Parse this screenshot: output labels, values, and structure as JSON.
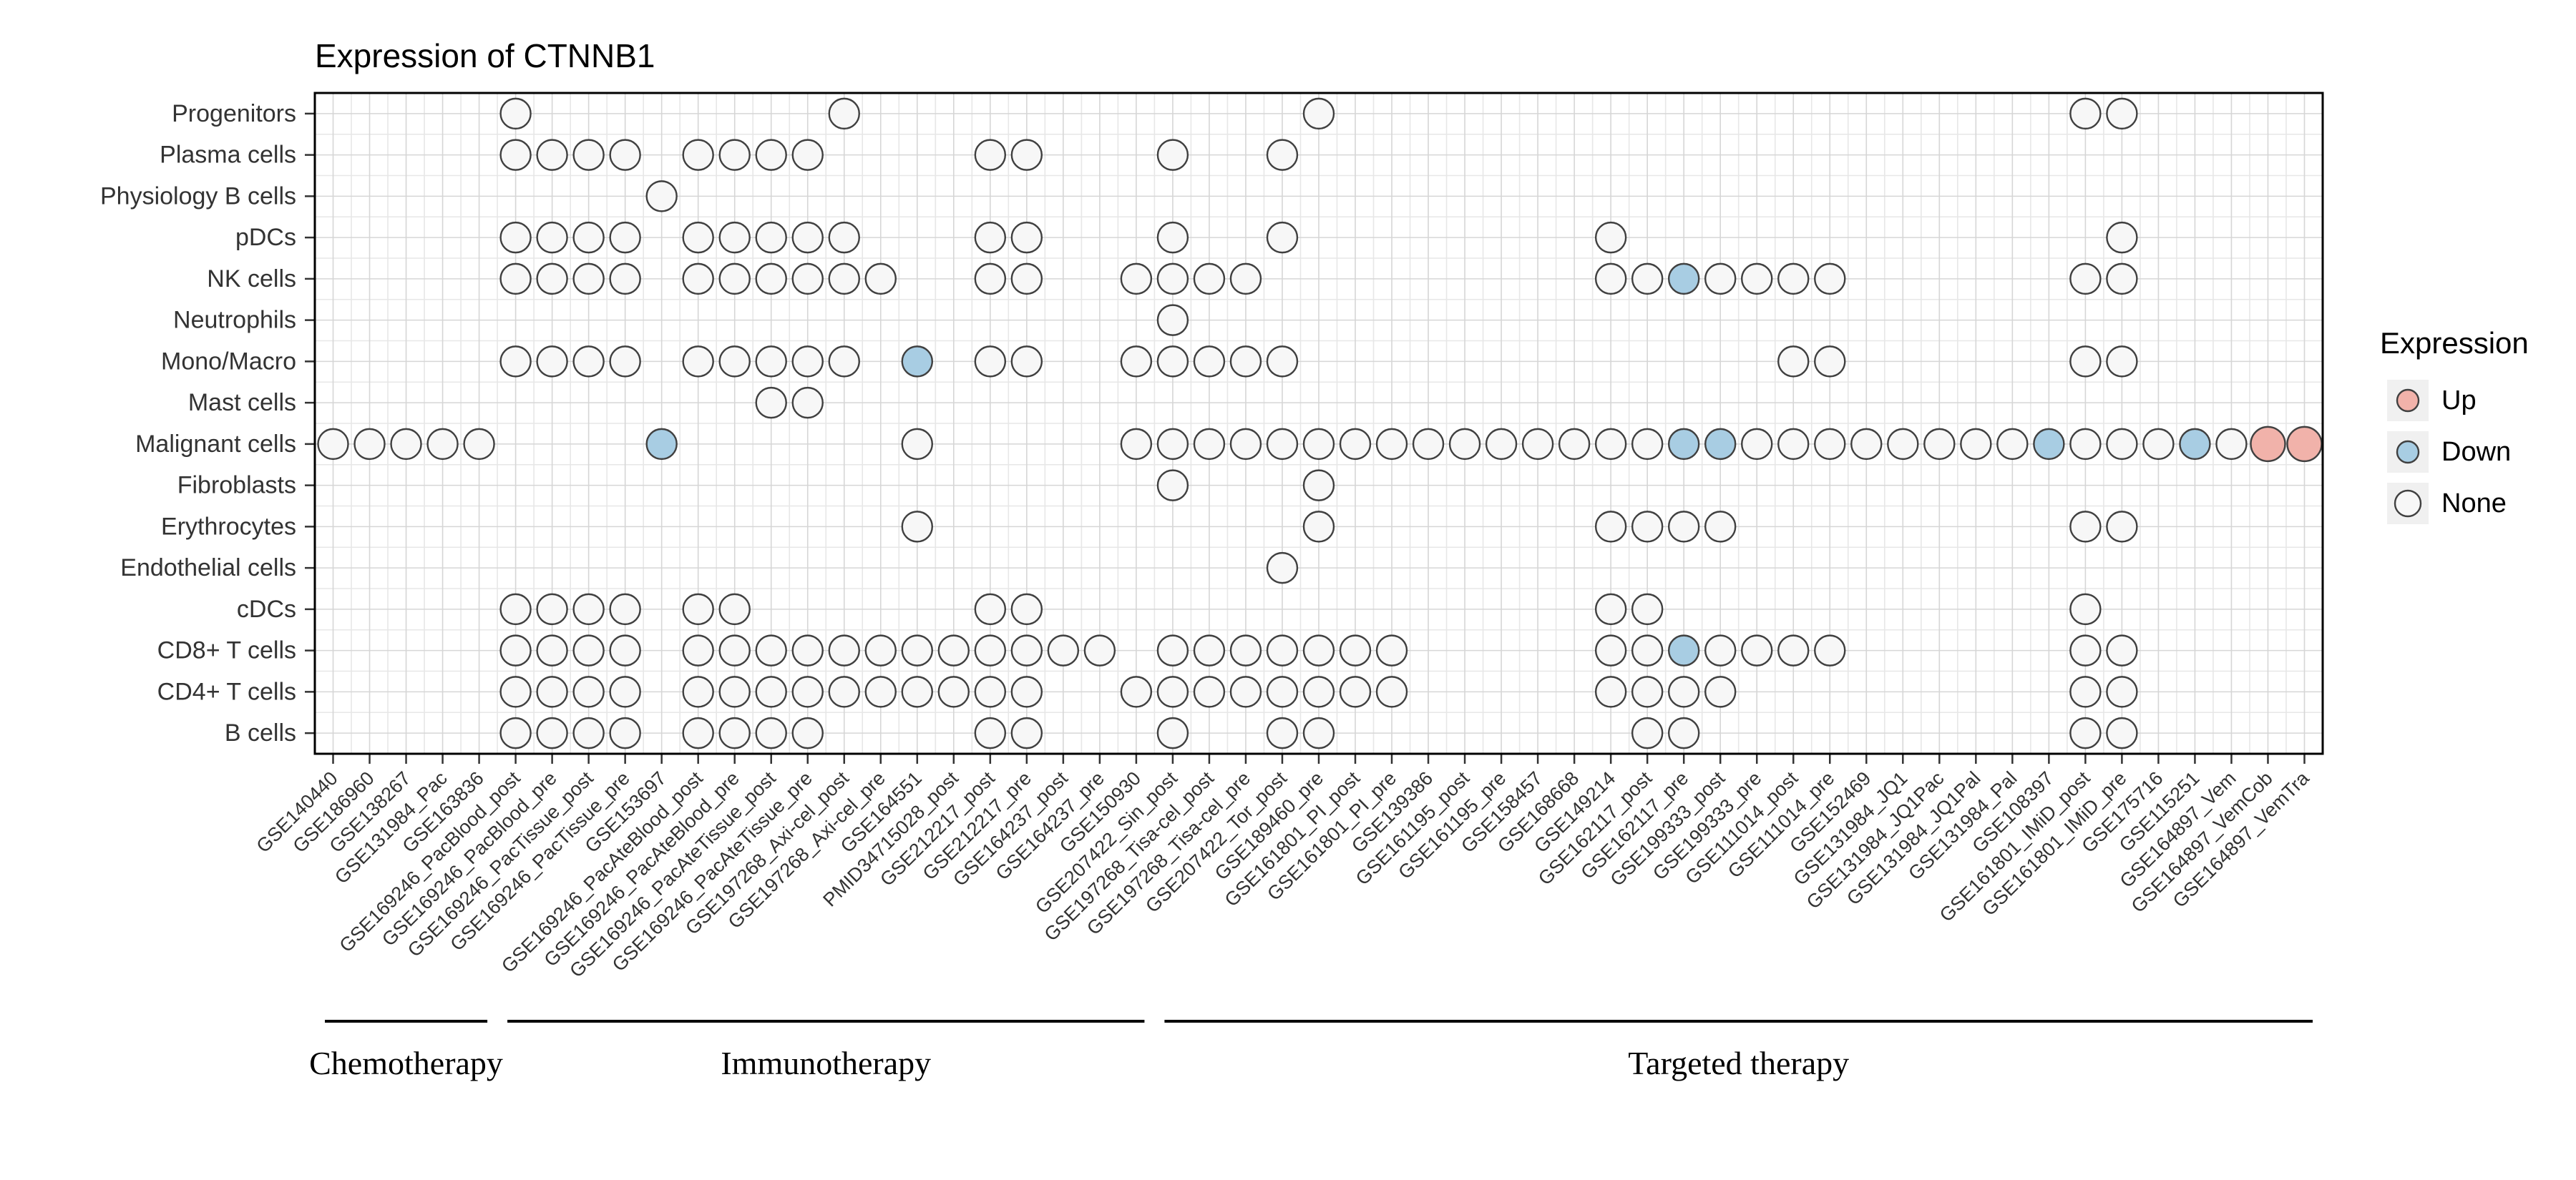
{
  "colors": {
    "up": "#F1B2AA",
    "down": "#A8CDE3",
    "none": "#F7F7F7",
    "dot_stroke": "#404040",
    "grid_major": "#d6d6d6",
    "grid_minor": "#e7e7e7",
    "panel_border": "#000000",
    "title_text": "#000000",
    "axis_text": "#333333",
    "legend_key_bg": "#f0f0f0"
  },
  "chart_data": {
    "type": "heatmap",
    "title": "Expression of CTNNB1",
    "xlabel": "",
    "ylabel": "",
    "legend": {
      "title": "Expression",
      "position": "right",
      "items": [
        {
          "label": "Up",
          "state": "up",
          "color": "#F1B2AA"
        },
        {
          "label": "Down",
          "state": "down",
          "color": "#A8CDE3"
        },
        {
          "label": "None",
          "state": "none",
          "color": "#F7F7F7"
        }
      ]
    },
    "rows": [
      "Progenitors",
      "Plasma cells",
      "Physiology B cells",
      "pDCs",
      "NK cells",
      "Neutrophils",
      "Mono/Macro",
      "Mast cells",
      "Malignant cells",
      "Fibroblasts",
      "Erythrocytes",
      "Endothelial cells",
      "cDCs",
      "CD8+ T cells",
      "CD4+ T cells",
      "B cells"
    ],
    "columns": [
      "GSE140440",
      "GSE186960",
      "GSE138267",
      "GSE131984_Pac",
      "GSE163836",
      "GSE169246_PacBlood_post",
      "GSE169246_PacBlood_pre",
      "GSE169246_PacTissue_post",
      "GSE169246_PacTissue_pre",
      "GSE153697",
      "GSE169246_PacAteBlood_post",
      "GSE169246_PacAteBlood_pre",
      "GSE169246_PacAteTissue_post",
      "GSE169246_PacAteTissue_pre",
      "GSE197268_Axi-cel_post",
      "GSE197268_Axi-cel_pre",
      "GSE164551",
      "PMID34715028_post",
      "GSE212217_post",
      "GSE212217_pre",
      "GSE164237_post",
      "GSE164237_pre",
      "GSE150930",
      "GSE207422_Sin_post",
      "GSE197268_Tisa-cel_post",
      "GSE197268_Tisa-cel_pre",
      "GSE207422_Tor_post",
      "GSE189460_pre",
      "GSE161801_PI_post",
      "GSE161801_PI_pre",
      "GSE139386",
      "GSE161195_post",
      "GSE161195_pre",
      "GSE158457",
      "GSE168668",
      "GSE149214",
      "GSE162117_post",
      "GSE162117_pre",
      "GSE199333_post",
      "GSE199333_pre",
      "GSE111014_post",
      "GSE111014_pre",
      "GSE152469",
      "GSE131984_JQ1",
      "GSE131984_JQ1Pac",
      "GSE131984_JQ1Pal",
      "GSE131984_Pal",
      "GSE108397",
      "GSE161801_IMiD_post",
      "GSE161801_IMiD_pre",
      "GSE175716",
      "GSE115251",
      "GSE164897_Vem",
      "GSE164897_VemCob",
      "GSE164897_VemTra"
    ],
    "groups": [
      {
        "label": "Chemotherapy",
        "col_start": 1,
        "col_end": 5
      },
      {
        "label": "Immunotherapy",
        "col_start": 6,
        "col_end": 23
      },
      {
        "label": "Targeted therapy",
        "col_start": 24,
        "col_end": 55
      }
    ],
    "cells": {
      "Progenitors": {
        "none": [
          6,
          15,
          28,
          49,
          50
        ]
      },
      "Plasma cells": {
        "none": [
          6,
          7,
          8,
          9,
          11,
          12,
          13,
          14,
          19,
          20,
          24,
          27
        ]
      },
      "Physiology B cells": {
        "none": [
          10
        ]
      },
      "pDCs": {
        "none": [
          6,
          7,
          8,
          9,
          11,
          12,
          13,
          14,
          15,
          19,
          20,
          24,
          27,
          36,
          50
        ]
      },
      "NK cells": {
        "none": [
          6,
          7,
          8,
          9,
          11,
          12,
          13,
          14,
          15,
          16,
          19,
          20,
          23,
          24,
          25,
          26,
          36,
          37,
          39,
          40,
          41,
          42,
          49,
          50
        ],
        "down": [
          38
        ]
      },
      "Neutrophils": {
        "none": [
          24
        ]
      },
      "Mono/Macro": {
        "none": [
          6,
          7,
          8,
          9,
          11,
          12,
          13,
          14,
          15,
          19,
          20,
          23,
          24,
          25,
          26,
          27,
          41,
          42,
          49,
          50
        ],
        "down": [
          17
        ]
      },
      "Mast cells": {
        "none": [
          13,
          14
        ]
      },
      "Malignant cells": {
        "none": [
          1,
          2,
          3,
          4,
          5,
          17,
          23,
          24,
          25,
          26,
          27,
          28,
          29,
          30,
          31,
          32,
          33,
          34,
          35,
          36,
          37,
          40,
          41,
          42,
          43,
          44,
          45,
          46,
          47,
          49,
          50,
          51,
          53
        ],
        "down": [
          10,
          38,
          39,
          48,
          52
        ],
        "up": [
          54,
          55
        ]
      },
      "Fibroblasts": {
        "none": [
          24,
          28
        ]
      },
      "Erythrocytes": {
        "none": [
          17,
          28,
          36,
          37,
          38,
          39,
          49,
          50
        ]
      },
      "Endothelial cells": {
        "none": [
          27
        ]
      },
      "cDCs": {
        "none": [
          6,
          7,
          8,
          9,
          11,
          12,
          19,
          20,
          36,
          37,
          49
        ]
      },
      "CD8+ T cells": {
        "none": [
          6,
          7,
          8,
          9,
          11,
          12,
          13,
          14,
          15,
          16,
          17,
          18,
          19,
          20,
          21,
          22,
          24,
          25,
          26,
          27,
          28,
          29,
          30,
          36,
          37,
          39,
          40,
          41,
          42,
          49,
          50
        ],
        "down": [
          38
        ]
      },
      "CD4+ T cells": {
        "none": [
          6,
          7,
          8,
          9,
          11,
          12,
          13,
          14,
          15,
          16,
          17,
          18,
          19,
          20,
          23,
          24,
          25,
          26,
          27,
          28,
          29,
          30,
          36,
          37,
          38,
          39,
          49,
          50
        ]
      },
      "B cells": {
        "none": [
          6,
          7,
          8,
          9,
          11,
          12,
          13,
          14,
          19,
          20,
          24,
          27,
          28,
          37,
          38,
          49,
          50
        ]
      }
    }
  }
}
